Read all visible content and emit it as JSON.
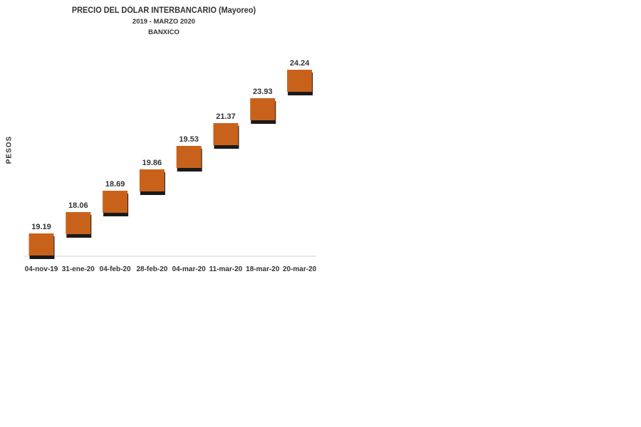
{
  "chart_data": {
    "type": "bar",
    "title": "PRECIO DEL DÓLAR INTERBANCARIO (Mayoreo)",
    "subtitle": "2019 - MARZO 2020",
    "source": "BANXICO",
    "ylabel": "PESOS",
    "xlabel": "",
    "categories": [
      "04-nov-19",
      "31-ene-20",
      "04-feb-20",
      "28-feb-20",
      "04-mar-20",
      "11-mar-20",
      "18-mar-20",
      "20-mar-20"
    ],
    "values": [
      19.19,
      18.06,
      18.69,
      19.86,
      19.53,
      21.37,
      23.93,
      24.24
    ],
    "data_labels": [
      "19.19",
      "18.06",
      "18.69",
      "19.86",
      "19.53",
      "21.37",
      "23.93",
      "24.24"
    ],
    "colors": {
      "bar": "#c8621b",
      "bar_shadow": "#1a1a1a",
      "axis": "#d0d0d0",
      "text": "#333333"
    },
    "grid": false,
    "legend": "none"
  }
}
